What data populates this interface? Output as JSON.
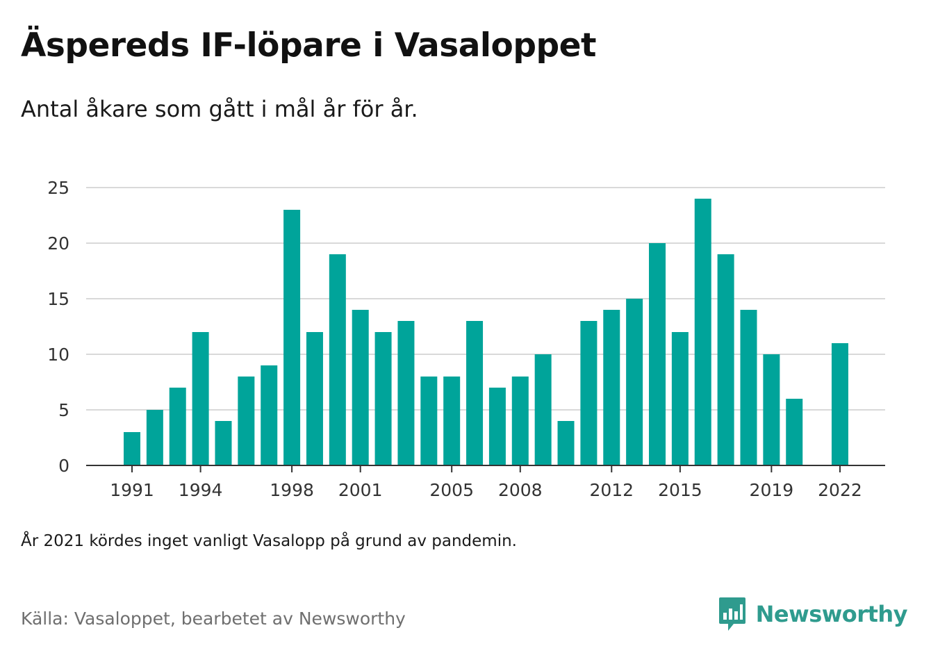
{
  "title": "Äspereds IF-löpare i Vasaloppet",
  "subtitle": "Antal åkare som gått i mål år för år.",
  "note": "År 2021 kördes inget vanligt Vasalopp på grund av pandemin.",
  "source": "Källa: Vasaloppet, bearbetet av Newsworthy",
  "brand": {
    "name": "Newsworthy",
    "icon": "bar-chart-speech-bubble-icon",
    "color": "#2f9b8e"
  },
  "colors": {
    "bar": "#00a49a",
    "grid": "#d9d9d9",
    "axis": "#333333"
  },
  "chart_data": {
    "type": "bar",
    "title": "Äspereds IF-löpare i Vasaloppet",
    "subtitle": "Antal åkare som gått i mål år för år.",
    "xlabel": "",
    "ylabel": "",
    "categories": [
      1991,
      1992,
      1993,
      1994,
      1995,
      1996,
      1997,
      1998,
      1999,
      2000,
      2001,
      2002,
      2003,
      2004,
      2005,
      2006,
      2007,
      2008,
      2009,
      2010,
      2011,
      2012,
      2013,
      2014,
      2015,
      2016,
      2017,
      2018,
      2019,
      2020,
      2021,
      2022
    ],
    "values": [
      3,
      5,
      7,
      12,
      4,
      8,
      9,
      23,
      12,
      19,
      14,
      12,
      13,
      8,
      8,
      13,
      7,
      8,
      10,
      4,
      13,
      14,
      15,
      20,
      12,
      24,
      19,
      14,
      10,
      6,
      null,
      11
    ],
    "ylim": [
      0,
      25
    ],
    "yticks": [
      0,
      5,
      10,
      15,
      20,
      25
    ],
    "xtick_labels": [
      1991,
      1994,
      1998,
      2001,
      2005,
      2008,
      2012,
      2015,
      2019,
      2022
    ],
    "grid": true,
    "legend": "none"
  }
}
